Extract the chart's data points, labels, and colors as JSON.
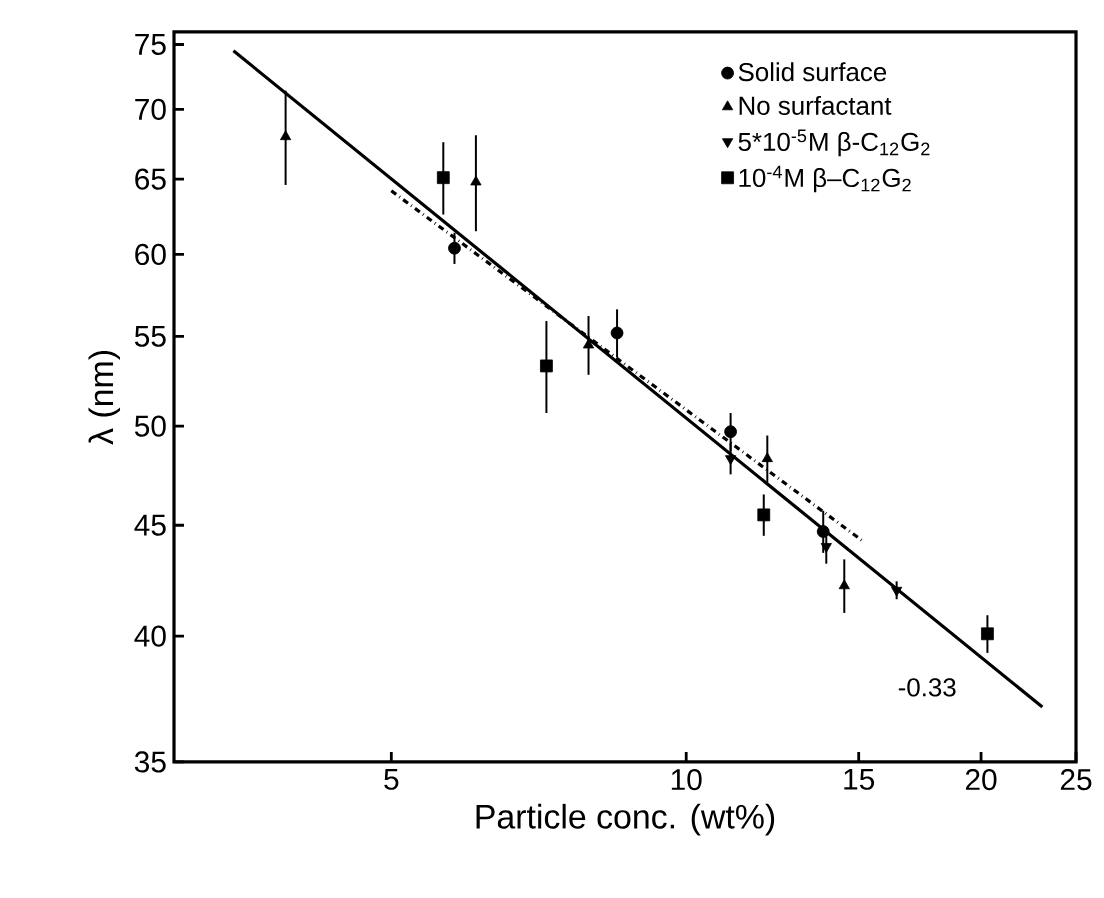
{
  "chart_data": {
    "type": "scatter",
    "xlabel": "Particle conc. (wt%)",
    "ylabel": "λ (nm)",
    "log": "xy",
    "xlim": [
      3,
      25
    ],
    "ylim": [
      35,
      76
    ],
    "xticks": [
      5,
      10,
      15,
      20,
      25
    ],
    "yticks": [
      35,
      40,
      45,
      50,
      55,
      60,
      65,
      70,
      75
    ],
    "grid": false,
    "legend": "top right",
    "annotations": [
      "-0.33"
    ],
    "series": [
      {
        "name": "Solid surface",
        "type": "scatter",
        "marker": "circle",
        "color": "#000000",
        "x": [
          5.8,
          8.5,
          11.1,
          13.8
        ],
        "values": [
          60.4,
          55.2,
          49.7,
          44.7
        ],
        "errors": [
          1,
          1.4,
          1,
          1
        ]
      },
      {
        "name": "No surfactant",
        "type": "scatter",
        "marker": "triangle",
        "color": "#000000",
        "x": [
          3.9,
          6.1,
          7.95,
          12.1,
          14.5
        ],
        "values": [
          68,
          64.8,
          54.5,
          48.3,
          42.2
        ],
        "errors": [
          3.4,
          3.3,
          1.7,
          1.2,
          1.2
        ]
      },
      {
        "name": "5*10$^{-5}$M β-C$_{12}$G$_{2}$",
        "type": "scatter",
        "marker": "triangle-down",
        "color": "#000000",
        "x": [
          11.1,
          13.9,
          16.4
        ],
        "values": [
          48.3,
          44.0,
          42.0
        ],
        "errors": [
          0.8,
          0.8,
          0.4
        ]
      },
      {
        "name": "10$^{-4}$M β–C$_{12}$G$_{2}$",
        "type": "scatter",
        "marker": "square",
        "color": "#000000",
        "x": [
          5.65,
          7.2,
          12.0,
          20.3
        ],
        "values": [
          65.1,
          53.3,
          45.5,
          40.1
        ],
        "errors": [
          2.5,
          2.6,
          1,
          0.8
        ]
      },
      {
        "type": "line",
        "marker": "none",
        "line_style": "solid",
        "color": "#000000",
        "x": [
          3.45,
          23.1
        ],
        "values": [
          74.5,
          37.1
        ]
      },
      {
        "type": "line",
        "marker": "none",
        "line_style": "dashed",
        "color": "#000000",
        "x": [
          5.0,
          15.2
        ],
        "values": [
          64.2,
          44.2
        ]
      }
    ]
  }
}
